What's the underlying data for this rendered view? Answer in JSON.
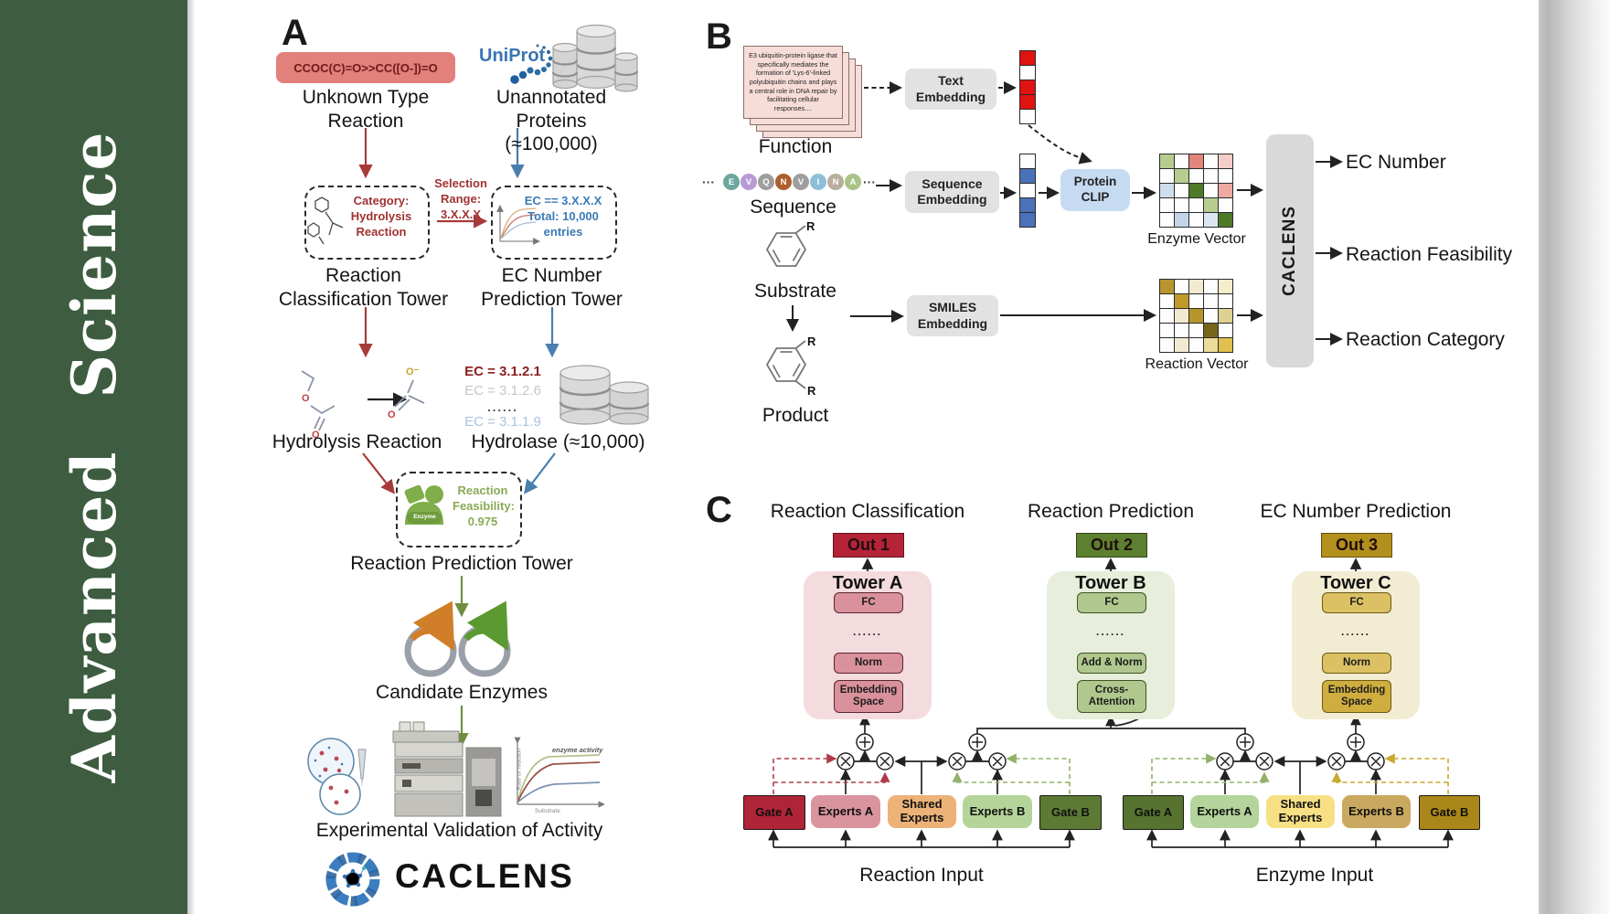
{
  "sidebar": {
    "title": "Advanced Science"
  },
  "panelA": {
    "label": "A",
    "smiles": "CCOC(C)=O>>CC([O-])=O",
    "unknownType": "Unknown Type Reaction",
    "uniprot": "UniProt",
    "unannotated": "Unannotated Proteins (≈100,000)",
    "categoryBox": "Category: Hydrolysis Reaction",
    "selectionRange": "Selection Range: 3.X.X.X",
    "ecBox": "EC == 3.X.X.X Total: 10,000 entries",
    "rcTower": "Reaction Classification Tower",
    "ecTower": "EC Number Prediction Tower",
    "hydrolysisReaction": "Hydrolysis Reaction",
    "ecList": [
      "EC = 3.1.2.1",
      "EC = 3.1.2.6",
      "......",
      "EC = 3.1.1.9"
    ],
    "hydrolase": "Hydrolase (≈10,000)",
    "enzymeLabel": "Enzyme",
    "feasibility": "Reaction Feasibility: 0.975",
    "rpTower": "Reaction Prediction Tower",
    "candidate": "Candidate Enzymes",
    "graph": {
      "annotation": "enzyme activity",
      "ylabel": "Rate of reaction",
      "xlabel": "Substrate"
    },
    "validation": "Experimental Validation of Activity",
    "brand": "CACLENS",
    "atoms": {
      "o": "O",
      "oMinus": "O⁻"
    }
  },
  "panelB": {
    "label": "B",
    "functionText": "E3 ubiquitin-protein ligase that specifically mediates the formation of 'Lys-6'-linked polyubiquitin chains and plays a central role in DNA repair by facilitating cellular responses....",
    "functionLabel": "Function",
    "dots": "···",
    "sequence": [
      "E",
      "V",
      "Q",
      "N",
      "V",
      "I",
      "N",
      "A"
    ],
    "sequenceColors": [
      "#6CA79E",
      "#B79BD5",
      "#9E9E9E",
      "#AD5F2E",
      "#9E9EA0",
      "#8FBFD8",
      "#B9AE9C",
      "#A9C487"
    ],
    "sequenceLabel": "Sequence",
    "substrateLabel": "Substrate",
    "productLabel": "Product",
    "rLabel": "R",
    "textEmbedding": "Text Embedding",
    "sequenceEmbedding": "Sequence Embedding",
    "smilesEmbedding": "SMILES Embedding",
    "proteinClip": "Protein CLIP",
    "enzymeVector": "Enzyme Vector",
    "reactionVector": "Reaction Vector",
    "caclens": "CACLENS",
    "outputs": [
      "EC Number",
      "Reaction Feasibility",
      "Reaction Category"
    ],
    "textVector": [
      "#e01212",
      "#fdfdfd",
      "#e01212",
      "#e01212",
      "#fdfdfd"
    ],
    "seqVector": [
      "#fdfdfd",
      "#4a72b8",
      "#fdfdfd",
      "#4a72b8",
      "#4a72b8"
    ],
    "enzymeMatrix": [
      [
        "#b7cd90",
        "#fdfdfd",
        "#e2857a",
        "#fdfdfd",
        "#f4cdc9"
      ],
      [
        "#fdfdfd",
        "#b7cd90",
        "#fdfdfd",
        "#fdfdfd",
        "#fdfdfd"
      ],
      [
        "#cfdeee",
        "#fdfdfd",
        "#4e7a28",
        "#fdfdfd",
        "#eeaaa2"
      ],
      [
        "#fdfdfd",
        "#fdfdfd",
        "#fdfdfd",
        "#b7cd90",
        "#fdfdfd"
      ],
      [
        "#fdfdfd",
        "#c5d5e9",
        "#fdfdfd",
        "#dce6f3",
        "#4e7a28"
      ]
    ],
    "reactionMatrix": [
      [
        "#b8952f",
        "#fdfdfd",
        "#f2ead0",
        "#fdfdfd",
        "#f5eecb"
      ],
      [
        "#fdfdfd",
        "#bf9a28",
        "#fdfdfd",
        "#fdfdfd",
        "#fdfdfd"
      ],
      [
        "#fdfdfd",
        "#f2ead0",
        "#b8952a",
        "#fdfdfd",
        "#ded192"
      ],
      [
        "#fdfdfd",
        "#fdfdfd",
        "#fdfdfd",
        "#77651a",
        "#fdfdfd"
      ],
      [
        "#fdfdfd",
        "#f2ead0",
        "#fdfdfd",
        "#ecdc9a",
        "#dfc04e"
      ]
    ]
  },
  "panelC": {
    "label": "C",
    "dots": "......",
    "columns": [
      {
        "header": "Reaction Classification",
        "out": "Out 1",
        "tower": "Tower A",
        "top": "FC",
        "mid": "Norm",
        "bottom": "Embedding Space"
      },
      {
        "header": "Reaction Prediction",
        "out": "Out 2",
        "tower": "Tower B",
        "top": "FC",
        "mid": "Add & Norm",
        "bottom": "Cross-Attention"
      },
      {
        "header": "EC Number Prediction",
        "out": "Out 3",
        "tower": "Tower C",
        "top": "FC",
        "mid": "Norm",
        "bottom": "Embedding Space"
      }
    ],
    "moe": [
      {
        "gateA": "Gate A",
        "expertsA": "Experts A",
        "shared": "Shared Experts",
        "expertsB": "Experts B",
        "gateB": "Gate B",
        "input": "Reaction Input"
      },
      {
        "gateA": "Gate A",
        "expertsA": "Experts A",
        "shared": "Shared Experts",
        "expertsB": "Experts B",
        "gateB": "Gate B",
        "input": "Enzyme Input"
      }
    ]
  },
  "colors": {
    "sidebar": "#3d5c40",
    "smilesBox": "#e2807b",
    "out1": "#b52338",
    "out2": "#5d8030",
    "out3": "#b3901d",
    "towerA": "#f3dbde",
    "towerB": "#e7eedb",
    "towerC": "#f2ecd2",
    "reactionMoe": {
      "gateA": "#b02438",
      "expertsA": "#d9949e",
      "shared": "#ecb278",
      "expertsB": "#b5d49a",
      "gateB": "#5c7a33"
    },
    "enzymeMoe": {
      "gateA": "#56732f",
      "expertsA": "#b3d49a",
      "shared": "#f7e084",
      "expertsB": "#c9a95f",
      "gateB": "#ab871a"
    }
  }
}
